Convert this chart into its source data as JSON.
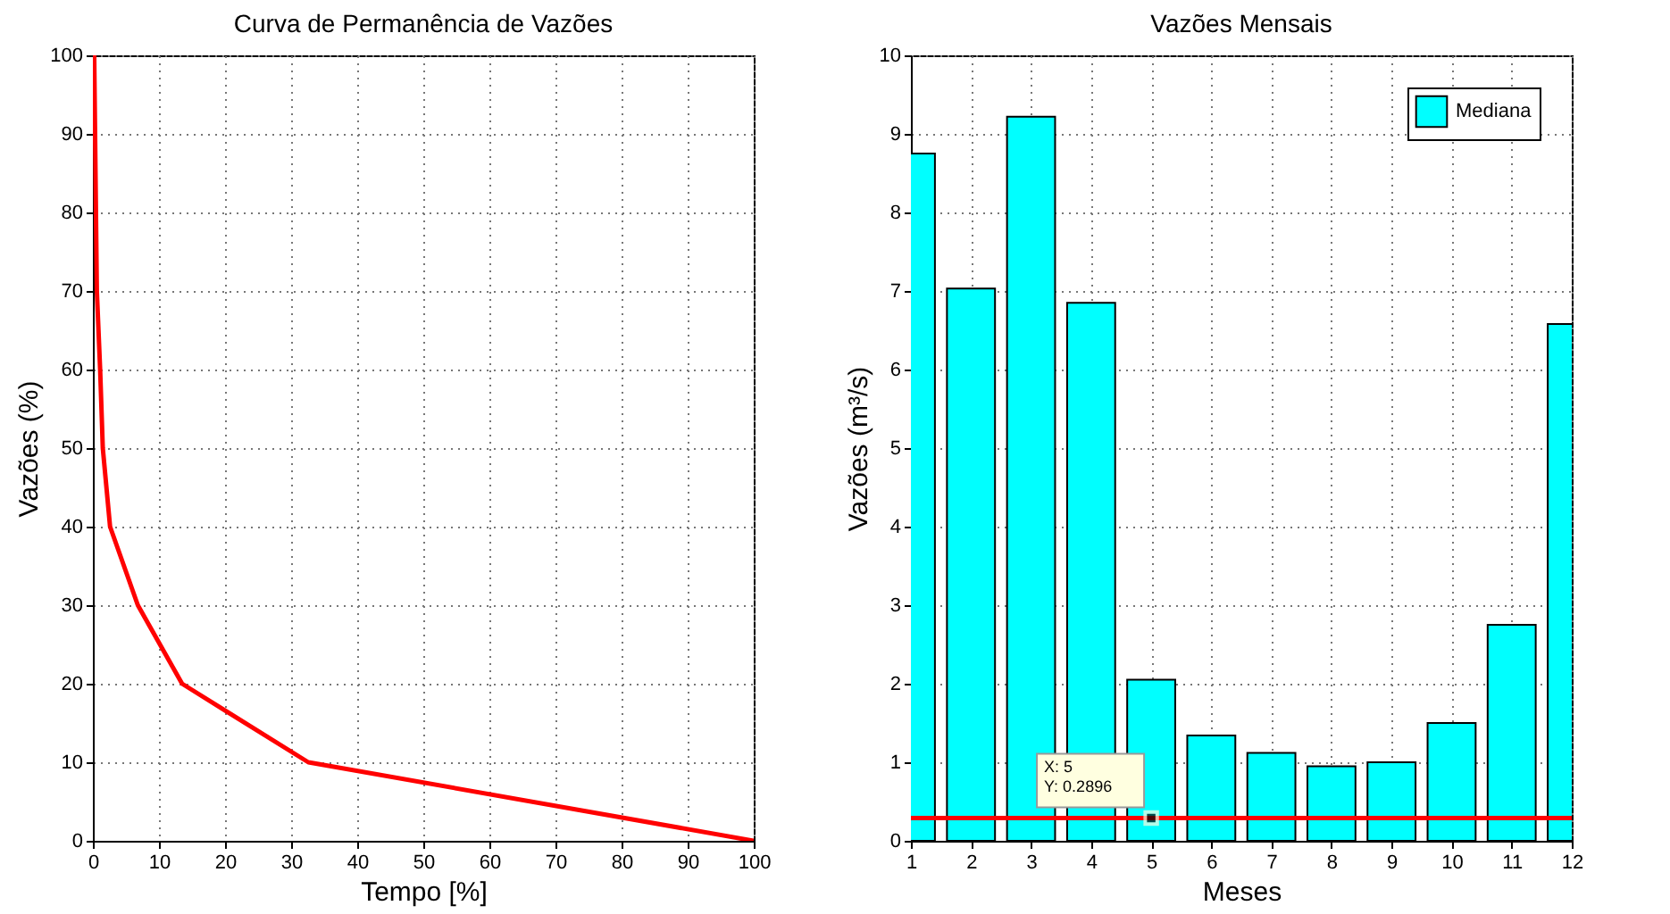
{
  "chart_data": [
    {
      "type": "line",
      "title": "Curva de Permanência de Vazões",
      "xlabel": "Tempo [%]",
      "ylabel": "Vazões (%)",
      "x": [
        0.2,
        0.6,
        1.1,
        1.5,
        2.6,
        6.8,
        13.5,
        32.6,
        100
      ],
      "series": [
        {
          "color": "#ff0000",
          "values": [
            100,
            70,
            60,
            50,
            40,
            30,
            20,
            10,
            0
          ]
        }
      ],
      "xlim": [
        0,
        100
      ],
      "xticks": [
        0,
        10,
        20,
        30,
        40,
        50,
        60,
        70,
        80,
        90,
        100
      ],
      "ylim": [
        0,
        100
      ],
      "yticks": [
        0,
        10,
        20,
        30,
        40,
        50,
        60,
        70,
        80,
        90,
        100
      ],
      "grid": true,
      "legend": false,
      "line_style": "solid"
    },
    {
      "type": "bar",
      "title": "Vazões Mensais",
      "xlabel": "Meses",
      "ylabel": "Vazões (m³/s)",
      "x": [
        1,
        2,
        3,
        4,
        5,
        6,
        7,
        8,
        9,
        10,
        11,
        12
      ],
      "series": [
        {
          "name": "Mediana",
          "color": "#00ffff",
          "values": [
            8.75,
            7.03,
            9.22,
            6.85,
            2.05,
            1.34,
            1.12,
            0.95,
            1.0,
            1.5,
            2.75,
            6.58
          ]
        }
      ],
      "xlim": [
        1,
        12
      ],
      "xticks": [
        1,
        2,
        3,
        4,
        5,
        6,
        7,
        8,
        9,
        10,
        11,
        12
      ],
      "ylim": [
        0,
        10
      ],
      "yticks": [
        0,
        1,
        2,
        3,
        4,
        5,
        6,
        7,
        8,
        9,
        10
      ],
      "ref_lines": [
        {
          "axis": "y",
          "value": 0.2896,
          "color": "#ff0000"
        }
      ],
      "annotations": [
        {
          "text": "X: 5\nY: 0.2896",
          "x": 5,
          "y": 0.2896
        }
      ],
      "grid": true,
      "legend": "top right"
    }
  ]
}
